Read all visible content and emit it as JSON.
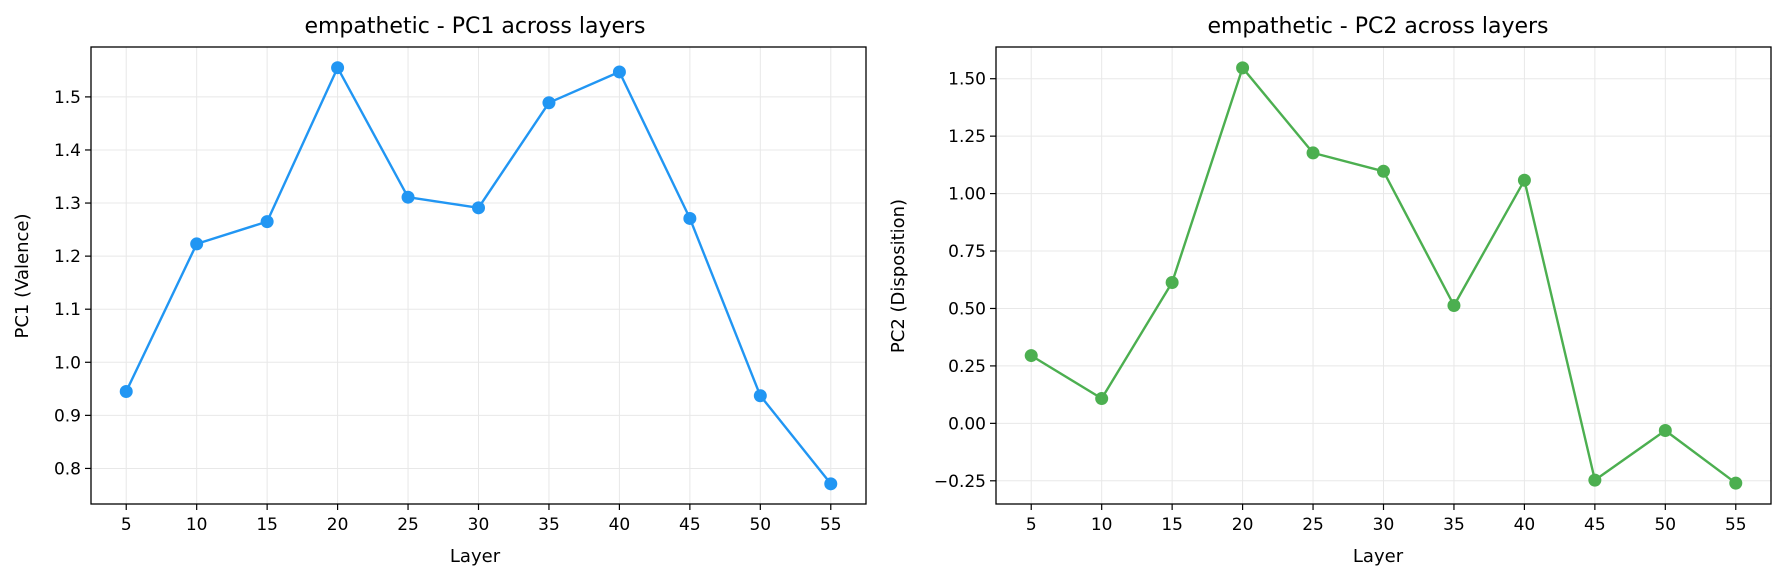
{
  "chart_data": [
    {
      "type": "line",
      "title": "empathetic - PC1 across layers",
      "xlabel": "Layer",
      "ylabel": "PC1 (Valence)",
      "x": [
        5,
        10,
        15,
        20,
        25,
        30,
        35,
        40,
        45,
        50,
        55
      ],
      "series": [
        {
          "values": [
            0.945,
            1.223,
            1.265,
            1.555,
            1.311,
            1.291,
            1.489,
            1.547,
            1.271,
            0.937,
            0.771
          ],
          "color": "#2196F3"
        }
      ],
      "xticks": [
        "5",
        "10",
        "15",
        "20",
        "25",
        "30",
        "35",
        "40",
        "45",
        "50",
        "55"
      ],
      "xtick_values": [
        5,
        10,
        15,
        20,
        25,
        30,
        35,
        40,
        45,
        50,
        55
      ],
      "yticks": [
        "0.8",
        "0.9",
        "1.0",
        "1.1",
        "1.2",
        "1.3",
        "1.4",
        "1.5"
      ],
      "ytick_values": [
        0.8,
        0.9,
        1.0,
        1.1,
        1.2,
        1.3,
        1.4,
        1.5
      ],
      "xlim": [
        2.5,
        57.5
      ],
      "ylim": [
        0.733,
        1.594
      ],
      "grid": true
    },
    {
      "type": "line",
      "title": "empathetic - PC2 across layers",
      "xlabel": "Layer",
      "ylabel": "PC2 (Disposition)",
      "x": [
        5,
        10,
        15,
        20,
        25,
        30,
        35,
        40,
        45,
        50,
        55
      ],
      "series": [
        {
          "values": [
            0.295,
            0.108,
            0.613,
            1.547,
            1.177,
            1.097,
            0.513,
            1.058,
            -0.247,
            -0.031,
            -0.26
          ],
          "color": "#4CAF50"
        }
      ],
      "xticks": [
        "5",
        "10",
        "15",
        "20",
        "25",
        "30",
        "35",
        "40",
        "45",
        "50",
        "55"
      ],
      "xtick_values": [
        5,
        10,
        15,
        20,
        25,
        30,
        35,
        40,
        45,
        50,
        55
      ],
      "yticks": [
        "−0.25",
        "0.00",
        "0.25",
        "0.50",
        "0.75",
        "1.00",
        "1.25",
        "1.50"
      ],
      "ytick_values": [
        -0.25,
        0.0,
        0.25,
        0.5,
        0.75,
        1.0,
        1.25,
        1.5
      ],
      "xlim": [
        2.5,
        57.5
      ],
      "ylim": [
        -0.351,
        1.638
      ],
      "grid": true
    }
  ]
}
